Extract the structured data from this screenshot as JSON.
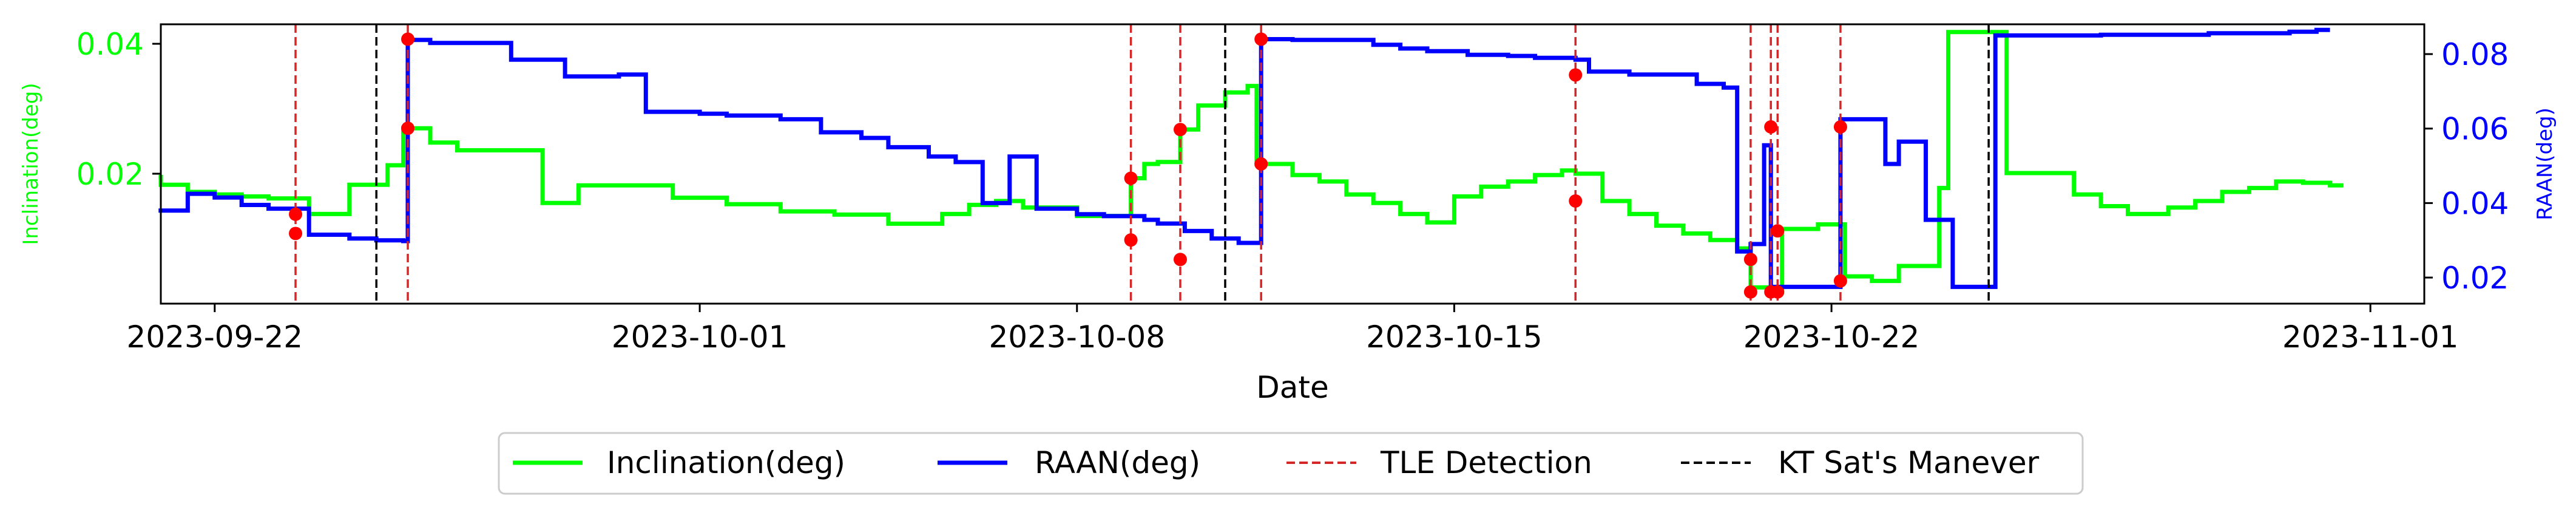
{
  "chart_data": {
    "type": "line",
    "xlabel": "Date",
    "x_range": [
      "2023-09-21",
      "2023-11-02"
    ],
    "x_ticks": [
      "2023-09-22",
      "2023-10-01",
      "2023-10-08",
      "2023-10-15",
      "2023-10-22",
      "2023-11-01"
    ],
    "y_left": {
      "label": "Inclination(deg)",
      "range": [
        0.0,
        0.043
      ],
      "ticks": [
        0.02,
        0.04
      ],
      "tick_labels": [
        "0.02",
        "0.04"
      ],
      "color": "#00ff00"
    },
    "y_right": {
      "label": "RAAN(deg)",
      "range": [
        0.013,
        0.088
      ],
      "ticks": [
        0.02,
        0.04,
        0.06,
        0.08
      ],
      "tick_labels": [
        "0.02",
        "0.04",
        "0.06",
        "0.08"
      ],
      "color": "#0000ff"
    },
    "series": [
      {
        "name": "Inclination(deg)",
        "axis": "left",
        "color": "#00ff00",
        "step": true,
        "points": [
          [
            "2023-09-20 23:00",
            0.0195
          ],
          [
            "2023-09-21 00:00",
            0.0183
          ],
          [
            "2023-09-21 12:00",
            0.0172
          ],
          [
            "2023-09-22 00:00",
            0.0168
          ],
          [
            "2023-09-22 12:00",
            0.0165
          ],
          [
            "2023-09-23 00:00",
            0.0162
          ],
          [
            "2023-09-23 18:00",
            0.0138
          ],
          [
            "2023-09-24 12:00",
            0.0183
          ],
          [
            "2023-09-25 05:00",
            0.0213
          ],
          [
            "2023-09-25 12:00",
            0.027
          ],
          [
            "2023-09-26 00:00",
            0.0248
          ],
          [
            "2023-09-26 12:00",
            0.0236
          ],
          [
            "2023-09-28 02:00",
            0.0155
          ],
          [
            "2023-09-28 18:00",
            0.0182
          ],
          [
            "2023-09-30 12:00",
            0.0163
          ],
          [
            "2023-10-01 12:00",
            0.0153
          ],
          [
            "2023-10-02 12:00",
            0.0142
          ],
          [
            "2023-10-03 12:00",
            0.0137
          ],
          [
            "2023-10-04 12:00",
            0.0123
          ],
          [
            "2023-10-05 12:00",
            0.0138
          ],
          [
            "2023-10-06 00:00",
            0.0152
          ],
          [
            "2023-10-06 12:00",
            0.0158
          ],
          [
            "2023-10-07 00:00",
            0.0148
          ],
          [
            "2023-10-08 00:00",
            0.0135
          ],
          [
            "2023-10-08 12:00",
            0.0135
          ],
          [
            "2023-10-09 00:00",
            0.0193
          ],
          [
            "2023-10-09 06:00",
            0.0215
          ],
          [
            "2023-10-09 12:00",
            0.0218
          ],
          [
            "2023-10-09 22:00",
            0.0268
          ],
          [
            "2023-10-10 06:00",
            0.0305
          ],
          [
            "2023-10-10 18:00",
            0.0325
          ],
          [
            "2023-10-11 04:00",
            0.0335
          ],
          [
            "2023-10-11 08:00",
            0.0215
          ],
          [
            "2023-10-12 00:00",
            0.0198
          ],
          [
            "2023-10-12 12:00",
            0.0188
          ],
          [
            "2023-10-13 00:00",
            0.0168
          ],
          [
            "2023-10-13 12:00",
            0.0155
          ],
          [
            "2023-10-14 00:00",
            0.0138
          ],
          [
            "2023-10-14 12:00",
            0.0125
          ],
          [
            "2023-10-15 00:00",
            0.0165
          ],
          [
            "2023-10-15 12:00",
            0.018
          ],
          [
            "2023-10-16 00:00",
            0.0188
          ],
          [
            "2023-10-16 12:00",
            0.0198
          ],
          [
            "2023-10-17 00:00",
            0.0205
          ],
          [
            "2023-10-17 06:00",
            0.02
          ],
          [
            "2023-10-17 18:00",
            0.0158
          ],
          [
            "2023-10-18 06:00",
            0.0138
          ],
          [
            "2023-10-18 18:00",
            0.012
          ],
          [
            "2023-10-19 06:00",
            0.0108
          ],
          [
            "2023-10-19 18:00",
            0.0098
          ],
          [
            "2023-10-20 06:00",
            0.0085
          ],
          [
            "2023-10-20 12:00",
            0.0025
          ],
          [
            "2023-10-20 20:00",
            0.0018
          ],
          [
            "2023-10-21 02:00",
            0.0115
          ],
          [
            "2023-10-21 18:00",
            0.0122
          ],
          [
            "2023-10-22 06:00",
            0.0042
          ],
          [
            "2023-10-22 18:00",
            0.0035
          ],
          [
            "2023-10-23 06:00",
            0.0058
          ],
          [
            "2023-10-24 00:00",
            0.0178
          ],
          [
            "2023-10-24 04:00",
            0.0418
          ],
          [
            "2023-10-24 22:00",
            0.0418
          ],
          [
            "2023-10-25 06:00",
            0.0201
          ],
          [
            "2023-10-26 12:00",
            0.0168
          ],
          [
            "2023-10-27 00:00",
            0.015
          ],
          [
            "2023-10-27 12:00",
            0.0138
          ],
          [
            "2023-10-28 06:00",
            0.0148
          ],
          [
            "2023-10-28 18:00",
            0.0158
          ],
          [
            "2023-10-29 06:00",
            0.0172
          ],
          [
            "2023-10-29 18:00",
            0.0178
          ],
          [
            "2023-10-30 06:00",
            0.0188
          ],
          [
            "2023-10-30 18:00",
            0.0186
          ],
          [
            "2023-10-31 06:00",
            0.0182
          ],
          [
            "2023-10-31 12:00",
            0.0182
          ]
        ]
      },
      {
        "name": "RAAN(deg)",
        "axis": "right",
        "color": "#0000ff",
        "step": true,
        "points": [
          [
            "2023-09-20 23:00",
            0.038
          ],
          [
            "2023-09-21 12:00",
            0.0425
          ],
          [
            "2023-09-22 00:00",
            0.0415
          ],
          [
            "2023-09-22 12:00",
            0.0395
          ],
          [
            "2023-09-23 00:00",
            0.0385
          ],
          [
            "2023-09-23 18:00",
            0.0315
          ],
          [
            "2023-09-24 12:00",
            0.0305
          ],
          [
            "2023-09-25 00:00",
            0.03
          ],
          [
            "2023-09-25 12:00",
            0.0298
          ],
          [
            "2023-09-25 14:00",
            0.0838
          ],
          [
            "2023-09-26 00:00",
            0.083
          ],
          [
            "2023-09-27 00:00",
            0.083
          ],
          [
            "2023-09-27 12:00",
            0.0785
          ],
          [
            "2023-09-28 12:00",
            0.074
          ],
          [
            "2023-09-29 12:00",
            0.0745
          ],
          [
            "2023-09-30 00:00",
            0.0645
          ],
          [
            "2023-10-01 00:00",
            0.064
          ],
          [
            "2023-10-01 12:00",
            0.0635
          ],
          [
            "2023-10-02 12:00",
            0.0625
          ],
          [
            "2023-10-03 06:00",
            0.059
          ],
          [
            "2023-10-04 00:00",
            0.0575
          ],
          [
            "2023-10-04 12:00",
            0.055
          ],
          [
            "2023-10-05 06:00",
            0.0525
          ],
          [
            "2023-10-05 18:00",
            0.051
          ],
          [
            "2023-10-06 06:00",
            0.04
          ],
          [
            "2023-10-06 18:00",
            0.0525
          ],
          [
            "2023-10-07 06:00",
            0.0385
          ],
          [
            "2023-10-08 00:00",
            0.037
          ],
          [
            "2023-10-08 12:00",
            0.0365
          ],
          [
            "2023-10-08 18:00",
            0.0365
          ],
          [
            "2023-10-09 06:00",
            0.0355
          ],
          [
            "2023-10-09 12:00",
            0.0345
          ],
          [
            "2023-10-10 00:00",
            0.0325
          ],
          [
            "2023-10-10 12:00",
            0.0305
          ],
          [
            "2023-10-11 00:00",
            0.0293
          ],
          [
            "2023-10-11 10:00",
            0.084
          ],
          [
            "2023-10-12 00:00",
            0.0838
          ],
          [
            "2023-10-13 12:00",
            0.0825
          ],
          [
            "2023-10-14 00:00",
            0.0815
          ],
          [
            "2023-10-14 12:00",
            0.0808
          ],
          [
            "2023-10-15 06:00",
            0.0798
          ],
          [
            "2023-10-16 00:00",
            0.0795
          ],
          [
            "2023-10-16 12:00",
            0.079
          ],
          [
            "2023-10-17 06:00",
            0.0785
          ],
          [
            "2023-10-17 12:00",
            0.0753
          ],
          [
            "2023-10-18 06:00",
            0.0745
          ],
          [
            "2023-10-19 12:00",
            0.072
          ],
          [
            "2023-10-20 00:00",
            0.071
          ],
          [
            "2023-10-20 06:00",
            0.027
          ],
          [
            "2023-10-20 12:00",
            0.029
          ],
          [
            "2023-10-20 18:00",
            0.0555
          ],
          [
            "2023-10-20 21:00",
            0.0175
          ],
          [
            "2023-10-21 00:00",
            0.0175
          ],
          [
            "2023-10-21 12:00",
            0.0175
          ],
          [
            "2023-10-21 20:00",
            0.0175
          ],
          [
            "2023-10-22 04:00",
            0.0625
          ],
          [
            "2023-10-22 18:00",
            0.0625
          ],
          [
            "2023-10-23 00:00",
            0.0505
          ],
          [
            "2023-10-23 06:00",
            0.0565
          ],
          [
            "2023-10-23 18:00",
            0.0355
          ],
          [
            "2023-10-24 06:00",
            0.0175
          ],
          [
            "2023-10-24 12:00",
            0.0175
          ],
          [
            "2023-10-25 01:00",
            0.085
          ],
          [
            "2023-10-27 00:00",
            0.0852
          ],
          [
            "2023-10-29 00:00",
            0.0856
          ],
          [
            "2023-10-30 12:00",
            0.086
          ],
          [
            "2023-10-31 00:00",
            0.0865
          ],
          [
            "2023-10-31 06:00",
            0.0865
          ]
        ]
      }
    ],
    "tle_detections": [
      "2023-09-23 12:00",
      "2023-09-25 14:00",
      "2023-10-09 00:00",
      "2023-10-09 22:00",
      "2023-10-11 10:00",
      "2023-10-17 06:00",
      "2023-10-20 12:00",
      "2023-10-20 21:00",
      "2023-10-21 00:00",
      "2023-10-22 04:00"
    ],
    "manuevers": [
      "2023-09-25 00:00",
      "2023-10-10 18:00",
      "2023-10-24 22:00"
    ],
    "markers": [
      {
        "date": "2023-09-23 12:00",
        "axis": "right",
        "value": 0.037
      },
      {
        "date": "2023-09-23 12:00",
        "axis": "left",
        "value": 0.0108
      },
      {
        "date": "2023-09-25 14:00",
        "axis": "left",
        "value": 0.027
      },
      {
        "date": "2023-09-25 14:00",
        "axis": "right",
        "value": 0.084
      },
      {
        "date": "2023-10-09 00:00",
        "axis": "left",
        "value": 0.0193
      },
      {
        "date": "2023-10-09 00:00",
        "axis": "left",
        "value": 0.0098
      },
      {
        "date": "2023-10-09 22:00",
        "axis": "left",
        "value": 0.0268
      },
      {
        "date": "2023-10-09 22:00",
        "axis": "left",
        "value": 0.0068
      },
      {
        "date": "2023-10-11 10:00",
        "axis": "left",
        "value": 0.0215
      },
      {
        "date": "2023-10-11 10:00",
        "axis": "right",
        "value": 0.084
      },
      {
        "date": "2023-10-17 06:00",
        "axis": "left",
        "value": 0.0352
      },
      {
        "date": "2023-10-17 06:00",
        "axis": "left",
        "value": 0.0158
      },
      {
        "date": "2023-10-20 12:00",
        "axis": "left",
        "value": 0.0018
      },
      {
        "date": "2023-10-20 12:00",
        "axis": "left",
        "value": 0.0068
      },
      {
        "date": "2023-10-20 21:00",
        "axis": "left",
        "value": 0.0018
      },
      {
        "date": "2023-10-20 21:00",
        "axis": "left",
        "value": 0.0272
      },
      {
        "date": "2023-10-21 00:00",
        "axis": "left",
        "value": 0.0018
      },
      {
        "date": "2023-10-21 00:00",
        "axis": "left",
        "value": 0.0112
      },
      {
        "date": "2023-10-22 04:00",
        "axis": "left",
        "value": 0.0272
      },
      {
        "date": "2023-10-22 04:00",
        "axis": "left",
        "value": 0.0035
      }
    ],
    "legend": {
      "placement": "bottom-center",
      "entries": [
        {
          "label": "Inclination(deg)",
          "color": "#00ff00",
          "style": "solid"
        },
        {
          "label": "RAAN(deg)",
          "color": "#0000ff",
          "style": "solid"
        },
        {
          "label": "TLE Detection",
          "color": "#d62728",
          "style": "dashed"
        },
        {
          "label": "KT Sat's Manever",
          "color": "#000000",
          "style": "dashed"
        }
      ]
    },
    "grid": false
  }
}
